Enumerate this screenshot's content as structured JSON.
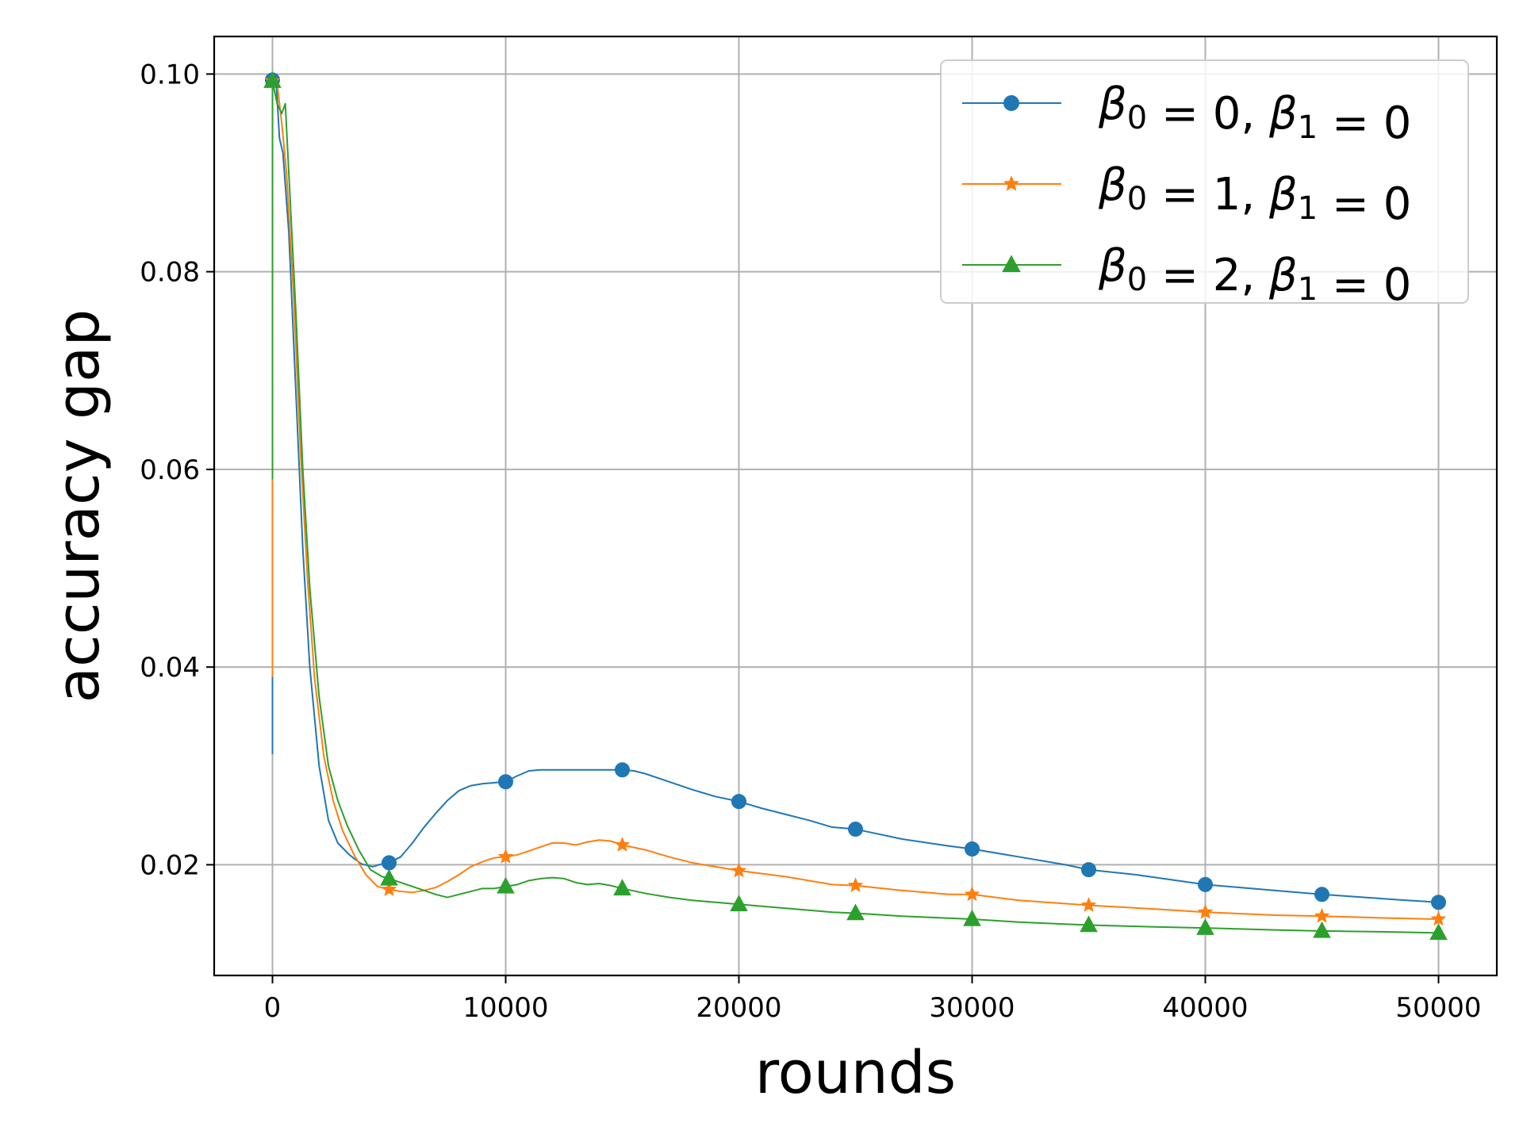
{
  "chart_data": {
    "type": "line",
    "title": "",
    "xlabel": "rounds",
    "ylabel": "accuracy gap",
    "xlim": [
      -2500,
      52500
    ],
    "ylim": [
      0.0088,
      0.1038
    ],
    "xticks": [
      0,
      10000,
      20000,
      30000,
      40000,
      50000
    ],
    "xtick_labels": [
      "0",
      "10000",
      "20000",
      "30000",
      "40000",
      "50000"
    ],
    "yticks": [
      0.02,
      0.04,
      0.06,
      0.08,
      0.1
    ],
    "ytick_labels": [
      "0.02",
      "0.04",
      "0.06",
      "0.08",
      "0.10"
    ],
    "grid": true,
    "legend_position": "top-right",
    "series": [
      {
        "name": "β0 = 0, β1 = 0",
        "legend": {
          "pre": "β",
          "sub0": "0",
          "mid": " = 0, β",
          "sub1": "1",
          "post": " = 0"
        },
        "color": "#1f77b4",
        "marker": "circle",
        "x": [
          0,
          1,
          150,
          300,
          450,
          700,
          1000,
          1300,
          1600,
          2000,
          2400,
          2800,
          3300,
          3800,
          4300,
          4700,
          5000,
          5500,
          6000,
          6500,
          7000,
          7500,
          8000,
          8500,
          9000,
          9500,
          10000,
          10500,
          11000,
          11500,
          12000,
          13000,
          14000,
          15000,
          15500,
          16000,
          17000,
          18000,
          19000,
          20000,
          21000,
          22000,
          23000,
          24000,
          25000,
          27000,
          29000,
          30000,
          32000,
          34000,
          35000,
          37000,
          40000,
          43000,
          45000,
          48000,
          50000
        ],
        "y": [
          0.0312,
          0.0994,
          0.0995,
          0.0935,
          0.092,
          0.084,
          0.068,
          0.052,
          0.04,
          0.03,
          0.0245,
          0.0222,
          0.021,
          0.0201,
          0.0198,
          0.0201,
          0.0202,
          0.0208,
          0.0222,
          0.0238,
          0.0252,
          0.0265,
          0.0275,
          0.028,
          0.0282,
          0.0283,
          0.0284,
          0.029,
          0.0295,
          0.0296,
          0.0296,
          0.0296,
          0.0296,
          0.0296,
          0.0295,
          0.0292,
          0.0284,
          0.0276,
          0.0269,
          0.0264,
          0.0257,
          0.0251,
          0.0245,
          0.0238,
          0.0236,
          0.0226,
          0.0219,
          0.0216,
          0.0208,
          0.02,
          0.0195,
          0.019,
          0.018,
          0.0174,
          0.017,
          0.0165,
          0.0162
        ],
        "marker_x": [
          0,
          5000,
          10000,
          15000,
          20000,
          25000,
          30000,
          35000,
          40000,
          45000,
          50000
        ],
        "marker_y": [
          0.0994,
          0.0202,
          0.0284,
          0.0296,
          0.0264,
          0.0236,
          0.0216,
          0.0195,
          0.018,
          0.017,
          0.0162
        ]
      },
      {
        "name": "β0 = 1, β1 = 0",
        "legend": {
          "pre": "β",
          "sub0": "0",
          "mid": " = 1, β",
          "sub1": "1",
          "post": " = 0"
        },
        "color": "#ff7f0e",
        "marker": "star",
        "x": [
          0,
          1,
          200,
          400,
          600,
          900,
          1200,
          1500,
          1800,
          2200,
          2600,
          3000,
          3500,
          4000,
          4500,
          5000,
          5500,
          6000,
          6500,
          7000,
          7500,
          8000,
          8500,
          9000,
          9500,
          10000,
          10500,
          11000,
          11500,
          12000,
          12500,
          13000,
          13500,
          14000,
          14500,
          15000,
          16000,
          17000,
          18000,
          19000,
          20000,
          22000,
          24000,
          25000,
          27000,
          29000,
          30000,
          32000,
          35000,
          38000,
          40000,
          43000,
          45000,
          48000,
          50000
        ],
        "y": [
          0.039,
          0.0993,
          0.099,
          0.095,
          0.09,
          0.078,
          0.062,
          0.049,
          0.039,
          0.031,
          0.0265,
          0.0235,
          0.021,
          0.019,
          0.0178,
          0.0175,
          0.0173,
          0.0172,
          0.0174,
          0.0177,
          0.0183,
          0.019,
          0.0198,
          0.0203,
          0.0207,
          0.0208,
          0.021,
          0.0214,
          0.0218,
          0.0222,
          0.0222,
          0.022,
          0.0223,
          0.0225,
          0.0224,
          0.022,
          0.0215,
          0.0208,
          0.0202,
          0.0198,
          0.0194,
          0.0188,
          0.018,
          0.0179,
          0.0174,
          0.017,
          0.017,
          0.0164,
          0.0159,
          0.0155,
          0.0152,
          0.0149,
          0.0148,
          0.0146,
          0.0145
        ],
        "marker_x": [
          0,
          5000,
          10000,
          15000,
          20000,
          25000,
          30000,
          35000,
          40000,
          45000,
          50000
        ],
        "marker_y": [
          0.0993,
          0.0175,
          0.0208,
          0.022,
          0.0194,
          0.0179,
          0.017,
          0.0159,
          0.0152,
          0.0148,
          0.0145
        ]
      },
      {
        "name": "β0 = 2, β1 = 0",
        "legend": {
          "pre": "β",
          "sub0": "0",
          "mid": " = 2, β",
          "sub1": "1",
          "post": " = 0"
        },
        "color": "#2ca02c",
        "marker": "triangle",
        "x": [
          0,
          1,
          200,
          400,
          550,
          700,
          1000,
          1300,
          1600,
          2000,
          2400,
          2800,
          3200,
          3700,
          4200,
          4700,
          5000,
          5500,
          6000,
          6500,
          7000,
          7500,
          8000,
          8500,
          9000,
          9500,
          10000,
          10500,
          11000,
          11500,
          12000,
          12500,
          13000,
          13500,
          14000,
          14500,
          15000,
          16000,
          17000,
          18000,
          19000,
          20000,
          22000,
          24000,
          25000,
          27000,
          29000,
          30000,
          32000,
          35000,
          38000,
          40000,
          43000,
          45000,
          48000,
          50000
        ],
        "y": [
          0.059,
          0.0993,
          0.097,
          0.096,
          0.097,
          0.09,
          0.076,
          0.06,
          0.048,
          0.037,
          0.03,
          0.0265,
          0.024,
          0.0215,
          0.0195,
          0.0188,
          0.0186,
          0.0182,
          0.0178,
          0.0174,
          0.017,
          0.0167,
          0.017,
          0.0173,
          0.0176,
          0.0176,
          0.0178,
          0.018,
          0.0184,
          0.0186,
          0.0187,
          0.0186,
          0.0182,
          0.018,
          0.0181,
          0.0179,
          0.0176,
          0.0171,
          0.0167,
          0.0164,
          0.0162,
          0.016,
          0.0156,
          0.0152,
          0.0151,
          0.0148,
          0.0146,
          0.0145,
          0.0142,
          0.0139,
          0.0137,
          0.0136,
          0.0134,
          0.0133,
          0.0132,
          0.0131
        ],
        "marker_x": [
          0,
          5000,
          10000,
          15000,
          20000,
          25000,
          30000,
          35000,
          40000,
          45000,
          50000
        ],
        "marker_y": [
          0.0993,
          0.0186,
          0.0178,
          0.0176,
          0.016,
          0.0151,
          0.0145,
          0.0139,
          0.0136,
          0.0133,
          0.0131
        ]
      }
    ]
  }
}
